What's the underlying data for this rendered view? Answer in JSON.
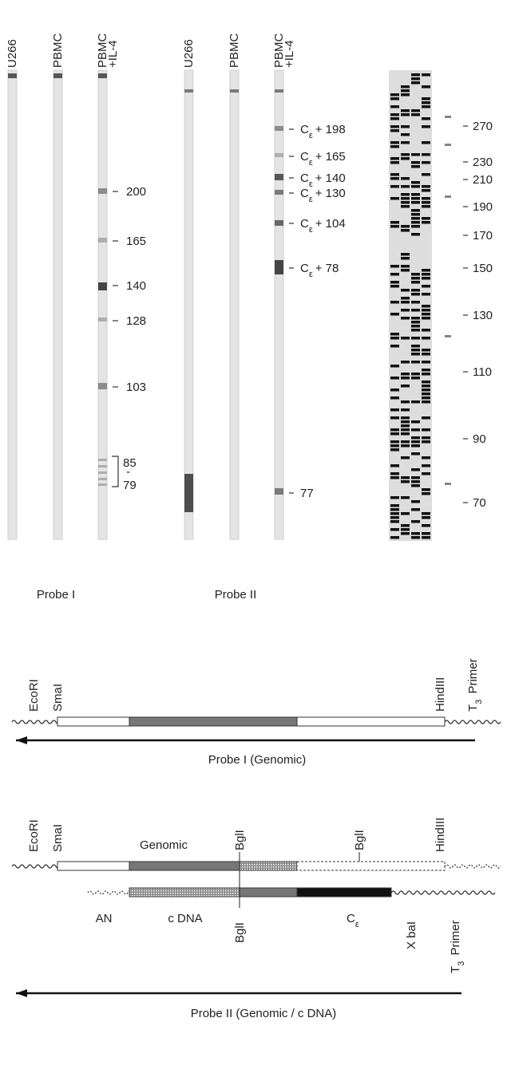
{
  "gel_probe_1": {
    "lanes": [
      {
        "label": "U266"
      },
      {
        "label": "PBMC"
      },
      {
        "label": "PBMC",
        "sublabel": "+IL-4"
      }
    ],
    "markers": [
      "200",
      "165",
      "140",
      "128",
      "103"
    ],
    "bracket": {
      "top": "85",
      "middle": "-",
      "bottom": "79"
    },
    "caption": "Probe I"
  },
  "gel_probe_2": {
    "lanes": [
      {
        "label": "U266"
      },
      {
        "label": "PBMC"
      },
      {
        "label": "PBMC",
        "sublabel": "+IL-4"
      }
    ],
    "markers": [
      {
        "base": "C",
        "sub": "ε",
        "text": "+ 198"
      },
      {
        "base": "C",
        "sub": "ε",
        "text": "+ 165"
      },
      {
        "base": "C",
        "sub": "ε",
        "text": "+ 140"
      },
      {
        "base": "C",
        "sub": "ε",
        "text": "+ 130"
      },
      {
        "base": "C",
        "sub": "ε",
        "text": "+ 104"
      },
      {
        "base": "C",
        "sub": "ε",
        "text": "+ 78"
      },
      "77"
    ],
    "caption": "Probe II"
  },
  "sequencing_ladder": {
    "markers": [
      "270",
      "230",
      "210",
      "190",
      "170",
      "150",
      "130",
      "110",
      "90",
      "70"
    ]
  },
  "diagram_probe_1": {
    "sites": [
      "EcoRI",
      "SmaI",
      "HindIII"
    ],
    "primer": {
      "base": "T",
      "sub": "3",
      "text": " Primer"
    },
    "caption": "Probe I  (Genomic)"
  },
  "diagram_probe_2": {
    "sites_top": [
      "EcoRI",
      "SmaI",
      "Genomic",
      "BglI",
      "BglI",
      "HindIII"
    ],
    "labels_bottom": [
      "AN",
      "c DNA",
      "BglI",
      {
        "base": "C",
        "sub": "ε",
        "text": ""
      },
      "X baI"
    ],
    "primer": {
      "base": "T",
      "sub": "3",
      "text": " Primer"
    },
    "caption": "Probe II  (Genomic / c DNA)"
  }
}
